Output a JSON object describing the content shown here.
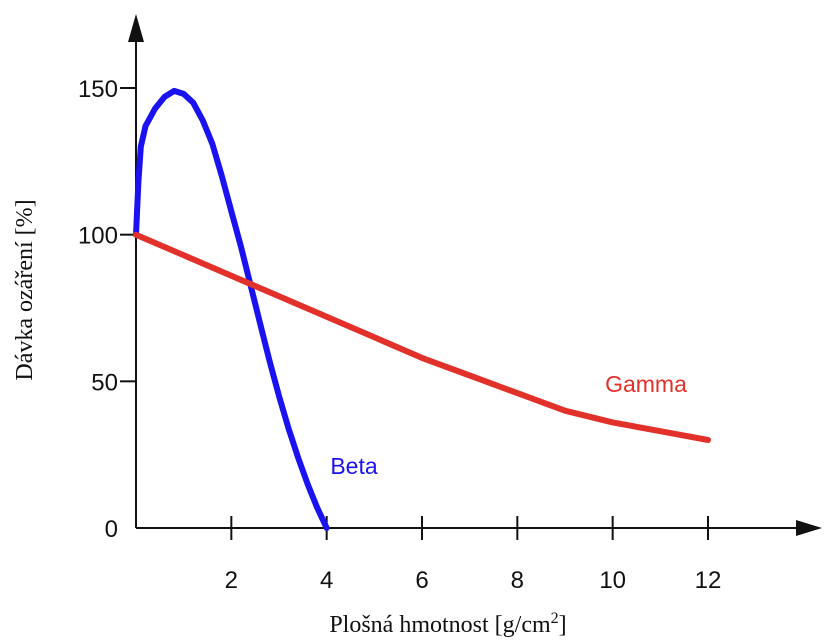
{
  "chart_data": {
    "type": "line",
    "title": "",
    "xlabel": "Plošná hmotnost [g/cm",
    "xlabel_sup": "2",
    "xlabel_end": "]",
    "ylabel": "Dávka ozáření [%]",
    "xlim": [
      0,
      12
    ],
    "ylim": [
      0,
      150
    ],
    "x_ticks": [
      2,
      4,
      6,
      8,
      10,
      12
    ],
    "x_tick_labels": [
      "2",
      "4",
      "6",
      "8",
      "10",
      "12"
    ],
    "y_ticks": [
      0,
      50,
      100,
      150
    ],
    "y_tick_labels": [
      "0",
      "50",
      "100",
      "150"
    ],
    "grid": false,
    "series": [
      {
        "name": "Beta",
        "color": "#1a12f0",
        "x": [
          0.0,
          0.05,
          0.1,
          0.2,
          0.4,
          0.6,
          0.8,
          1.0,
          1.2,
          1.4,
          1.6,
          1.8,
          2.0,
          2.2,
          2.4,
          2.6,
          2.8,
          3.0,
          3.2,
          3.4,
          3.6,
          3.8,
          4.0
        ],
        "y": [
          100,
          118,
          130,
          137,
          143,
          147,
          149,
          148,
          145,
          139,
          131,
          120,
          108,
          96,
          83,
          70,
          57,
          45,
          34,
          24,
          15,
          7,
          0
        ]
      },
      {
        "name": "Gamma",
        "color": "#e2312a",
        "x": [
          0,
          1,
          2,
          3,
          4,
          5,
          6,
          7,
          8,
          9,
          10,
          11,
          12
        ],
        "y": [
          100,
          93,
          86,
          79,
          72,
          65,
          58,
          52,
          46,
          40,
          36,
          33,
          30
        ]
      }
    ]
  }
}
